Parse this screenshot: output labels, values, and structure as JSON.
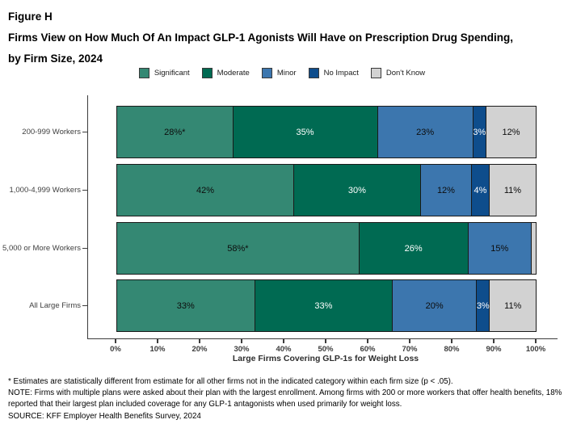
{
  "header": {
    "figure_label": "Figure H",
    "title": "Firms View on How Much Of An Impact GLP-1 Agonists Will Have on Prescription Drug Spending, by Firm Size, 2024"
  },
  "chart_data": {
    "type": "bar",
    "stacked": true,
    "orientation": "horizontal",
    "title": "Firms View on How Much Of An Impact GLP-1 Agonists Will Have on Prescription Drug Spending, by Firm Size, 2024",
    "categories": [
      "200-999 Workers",
      "1,000-4,999 Workers",
      "5,000 or More Workers",
      "All Large Firms"
    ],
    "series": [
      {
        "name": "Significant",
        "color": "#348873",
        "label_color": "#0d0d0d",
        "values": [
          28,
          42,
          58,
          33
        ],
        "labels": [
          "28%*",
          "42%",
          "58%*",
          "33%"
        ]
      },
      {
        "name": "Moderate",
        "color": "#006A52",
        "label_color": "#ffffff",
        "values": [
          35,
          30,
          26,
          33
        ],
        "labels": [
          "35%",
          "30%",
          "26%",
          "33%"
        ]
      },
      {
        "name": "Minor",
        "color": "#3C76AE",
        "label_color": "#0d0d0d",
        "values": [
          23,
          12,
          15,
          20
        ],
        "labels": [
          "23%",
          "12%",
          "15%",
          "20%"
        ]
      },
      {
        "name": "No Impact",
        "color": "#0E4D8C",
        "label_color": "#ffffff",
        "values": [
          3,
          4,
          0,
          3
        ],
        "labels": [
          "3%",
          "4%",
          "",
          "3%"
        ]
      },
      {
        "name": "Don't Know",
        "color": "#D2D2D2",
        "label_color": "#0d0d0d",
        "values": [
          12,
          11,
          1,
          11
        ],
        "labels": [
          "12%",
          "11%",
          "",
          "11%"
        ]
      }
    ],
    "xlabel": "Large Firms Covering GLP-1s for Weight Loss",
    "ylabel": "",
    "x_ticks": [
      "0%",
      "10%",
      "20%",
      "30%",
      "40%",
      "50%",
      "60%",
      "70%",
      "80%",
      "90%",
      "100%"
    ],
    "xlim": [
      0,
      100
    ],
    "grid": false,
    "legend_position": "top"
  },
  "footnotes": {
    "asterisk": "* Estimates are statistically different from estimate for all other firms not in the indicated category within each firm size (p < .05).",
    "note": "NOTE: Firms with multiple plans were asked about their plan with the largest enrollment.  Among firms with 200 or more workers that offer health benefits, 18% reported that their largest plan included coverage for any GLP-1 antagonists when used primarily for weight loss.",
    "source": "SOURCE: KFF Employer Health Benefits Survey, 2024"
  },
  "colors": {
    "axis_line": "#3c3c3c",
    "segment_border": "#1a1a1a"
  }
}
